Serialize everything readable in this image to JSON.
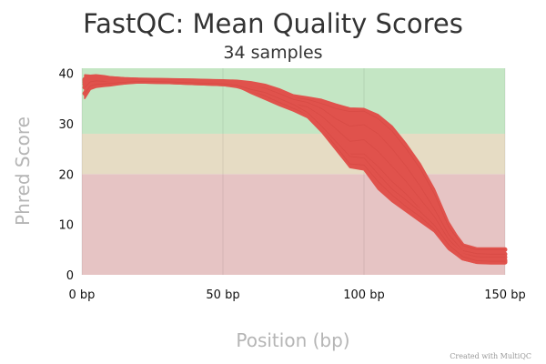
{
  "chart_data": {
    "type": "line",
    "title": "FastQC: Mean Quality Scores",
    "subtitle": "34 samples",
    "xlabel": "Position (bp)",
    "ylabel": "Phred Score",
    "xlim": [
      0,
      150
    ],
    "ylim": [
      0,
      41
    ],
    "x_ticks": [
      {
        "value": 0,
        "label": "0 bp"
      },
      {
        "value": 50,
        "label": "50 bp"
      },
      {
        "value": 100,
        "label": "100 bp"
      },
      {
        "value": 150,
        "label": "150 bp"
      }
    ],
    "y_ticks": [
      {
        "value": 0,
        "label": "0"
      },
      {
        "value": 10,
        "label": "10"
      },
      {
        "value": 20,
        "label": "20"
      },
      {
        "value": 30,
        "label": "30"
      },
      {
        "value": 40,
        "label": "40"
      }
    ],
    "grid": true,
    "legend": "none",
    "bands": [
      {
        "from": 0,
        "to": 20,
        "color": "#e6c4c4"
      },
      {
        "from": 20,
        "to": 28,
        "color": "#e6dcc4"
      },
      {
        "from": 28,
        "to": 41,
        "color": "#c4e6c4"
      }
    ],
    "series_color": "#e0524c",
    "x": [
      1,
      3,
      5,
      8,
      10,
      15,
      20,
      30,
      40,
      50,
      55,
      60,
      65,
      70,
      75,
      80,
      85,
      90,
      95,
      100,
      105,
      110,
      115,
      120,
      125,
      130,
      135,
      140,
      145,
      150
    ],
    "envelope": {
      "upper": [
        39.7,
        39.6,
        39.7,
        39.5,
        39.3,
        39.1,
        39.0,
        38.9,
        38.8,
        38.7,
        38.6,
        38.3,
        37.8,
        36.9,
        35.7,
        35.3,
        34.8,
        33.9,
        33.1,
        33.0,
        31.8,
        29.5,
        26.0,
        22.0,
        17.0,
        10.5,
        6.0,
        5.2,
        5.1,
        5.0
      ],
      "lower": [
        35.0,
        36.8,
        37.2,
        37.4,
        37.5,
        37.9,
        38.3,
        38.2,
        38.0,
        37.8,
        37.4,
        36.0,
        34.8,
        33.6,
        32.5,
        31.2,
        28.3,
        24.8,
        21.3,
        20.8,
        17.0,
        14.5,
        12.5,
        10.5,
        8.5,
        5.0,
        3.0,
        2.3,
        2.2,
        2.2
      ]
    },
    "series": [
      {
        "values": [
          38.8,
          39.1,
          39.2,
          39.1,
          39.0,
          38.8,
          38.7,
          38.6,
          38.5,
          38.3,
          38.2,
          37.8,
          37.3,
          36.4,
          35.2,
          34.8,
          34.0,
          33.0,
          32.4,
          32.5,
          31.0,
          28.5,
          25.0,
          21.0,
          16.0,
          9.5,
          5.8,
          5.0,
          5.0,
          5.0
        ]
      },
      {
        "values": [
          38.5,
          39.0,
          39.1,
          39.0,
          38.9,
          38.7,
          38.6,
          38.5,
          38.4,
          38.2,
          38.0,
          37.5,
          37.0,
          36.0,
          34.8,
          34.2,
          33.0,
          31.0,
          29.5,
          29.8,
          28.0,
          25.0,
          21.5,
          17.5,
          13.0,
          8.0,
          4.8,
          4.2,
          4.1,
          4.1
        ]
      },
      {
        "values": [
          38.2,
          38.8,
          39.0,
          38.9,
          38.8,
          38.6,
          38.5,
          38.4,
          38.3,
          38.1,
          37.8,
          37.2,
          36.5,
          35.3,
          34.0,
          33.3,
          31.5,
          29.0,
          26.5,
          26.8,
          24.5,
          21.5,
          18.5,
          15.0,
          11.5,
          7.0,
          4.2,
          3.6,
          3.5,
          3.5
        ]
      },
      {
        "values": [
          37.8,
          38.6,
          38.8,
          38.7,
          38.6,
          38.5,
          38.4,
          38.3,
          38.2,
          37.9,
          37.5,
          36.8,
          36.0,
          34.8,
          33.5,
          32.6,
          30.0,
          27.0,
          24.0,
          24.0,
          21.5,
          18.5,
          16.0,
          13.0,
          10.0,
          6.2,
          3.8,
          3.0,
          2.9,
          2.9
        ]
      },
      {
        "values": [
          37.2,
          38.3,
          38.5,
          38.4,
          38.3,
          38.3,
          38.4,
          38.3,
          38.1,
          37.9,
          37.6,
          36.5,
          35.5,
          34.2,
          33.0,
          31.8,
          29.0,
          25.5,
          22.0,
          21.8,
          18.5,
          15.8,
          13.5,
          11.5,
          9.0,
          5.5,
          3.3,
          2.6,
          2.5,
          2.5
        ]
      },
      {
        "values": [
          36.0,
          37.5,
          37.8,
          37.9,
          38.0,
          38.2,
          38.4,
          38.3,
          38.1,
          37.9,
          37.6,
          36.8,
          36.2,
          35.0,
          33.8,
          32.2,
          29.5,
          26.5,
          23.5,
          23.2,
          20.0,
          17.0,
          14.8,
          12.5,
          9.8,
          6.0,
          3.6,
          2.8,
          2.7,
          2.7
        ]
      }
    ],
    "credit": "Created with MultiQC"
  }
}
